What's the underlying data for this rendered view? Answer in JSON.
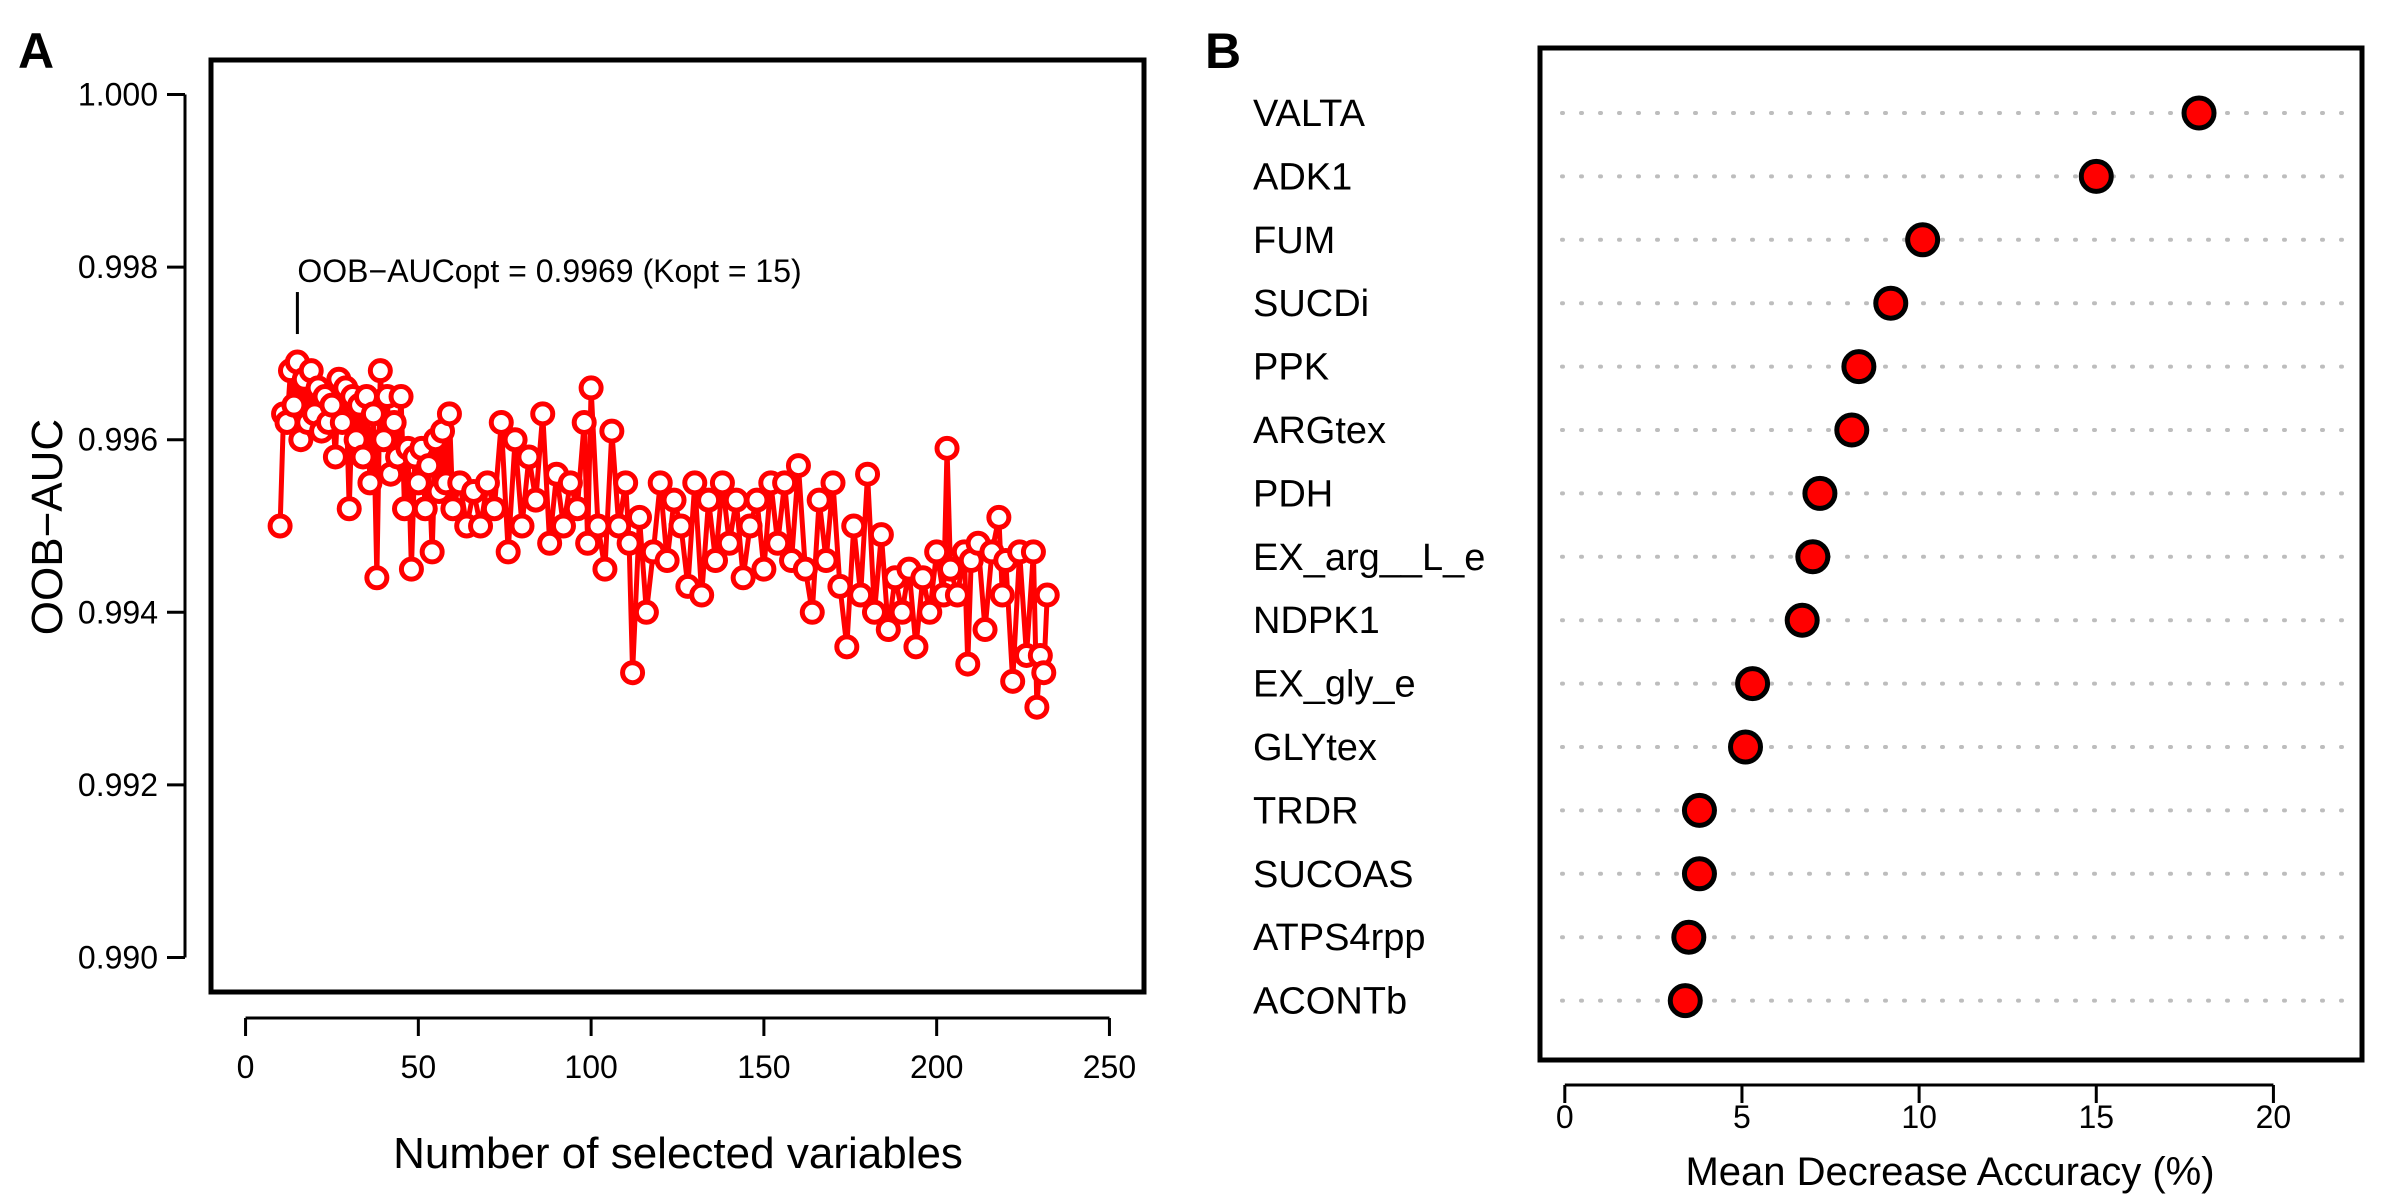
{
  "chart_data": [
    {
      "panel_label": "A",
      "type": "line",
      "xlabel": "Number of selected variables",
      "ylabel": "OOB−AUC",
      "xlim": [
        -10,
        260
      ],
      "ylim": [
        0.9896,
        1.0004
      ],
      "x_ticks": [
        0,
        50,
        100,
        150,
        200,
        250
      ],
      "x_tick_labels": [
        "0",
        "50",
        "100",
        "150",
        "200",
        "250"
      ],
      "y_ticks": [
        0.99,
        0.992,
        0.994,
        0.996,
        0.998,
        1.0
      ],
      "y_tick_labels": [
        "0.990",
        "0.992",
        "0.994",
        "0.996",
        "0.998",
        "1.000"
      ],
      "annotation": {
        "text": "OOB−AUCopt = 0.9969 (Kopt = 15)",
        "x": 15,
        "y": 0.9969
      },
      "series": [
        {
          "name": "OOB-AUC",
          "color": "#ff0000",
          "x": [
            10,
            11,
            12,
            13,
            14,
            15,
            16,
            17,
            18,
            19,
            20,
            21,
            22,
            23,
            24,
            25,
            26,
            27,
            28,
            29,
            30,
            31,
            32,
            33,
            34,
            35,
            36,
            37,
            38,
            39,
            40,
            41,
            42,
            43,
            44,
            45,
            46,
            47,
            48,
            49,
            50,
            51,
            52,
            53,
            54,
            55,
            56,
            57,
            58,
            59,
            60,
            62,
            64,
            66,
            68,
            70,
            72,
            74,
            76,
            78,
            80,
            82,
            84,
            86,
            88,
            90,
            92,
            94,
            96,
            98,
            99,
            100,
            102,
            104,
            106,
            108,
            110,
            111,
            112,
            114,
            116,
            118,
            120,
            122,
            124,
            126,
            128,
            130,
            132,
            134,
            136,
            138,
            140,
            142,
            144,
            146,
            148,
            150,
            152,
            154,
            156,
            158,
            160,
            162,
            164,
            166,
            168,
            170,
            172,
            174,
            176,
            178,
            180,
            182,
            184,
            186,
            188,
            190,
            192,
            194,
            196,
            198,
            200,
            202,
            203,
            204,
            206,
            208,
            209,
            210,
            212,
            214,
            216,
            218,
            219,
            220,
            222,
            224,
            226,
            228,
            229,
            230,
            231,
            232
          ],
          "y": [
            0.995,
            0.9963,
            0.9962,
            0.9968,
            0.9964,
            0.9969,
            0.996,
            0.9967,
            0.9962,
            0.9968,
            0.9963,
            0.9966,
            0.9961,
            0.9965,
            0.9962,
            0.9964,
            0.9958,
            0.9967,
            0.9962,
            0.9966,
            0.9952,
            0.9965,
            0.996,
            0.9964,
            0.9958,
            0.9965,
            0.9955,
            0.9963,
            0.9944,
            0.9968,
            0.996,
            0.9965,
            0.9956,
            0.9962,
            0.9958,
            0.9965,
            0.9952,
            0.9959,
            0.9945,
            0.9958,
            0.9955,
            0.9959,
            0.9952,
            0.9957,
            0.9947,
            0.996,
            0.9954,
            0.9961,
            0.9955,
            0.9963,
            0.9952,
            0.9955,
            0.995,
            0.9954,
            0.995,
            0.9955,
            0.9952,
            0.9962,
            0.9947,
            0.996,
            0.995,
            0.9958,
            0.9953,
            0.9963,
            0.9948,
            0.9956,
            0.995,
            0.9955,
            0.9952,
            0.9962,
            0.9948,
            0.9966,
            0.995,
            0.9945,
            0.9961,
            0.995,
            0.9955,
            0.9948,
            0.9933,
            0.9951,
            0.994,
            0.9947,
            0.9955,
            0.9946,
            0.9953,
            0.995,
            0.9943,
            0.9955,
            0.9942,
            0.9953,
            0.9946,
            0.9955,
            0.9948,
            0.9953,
            0.9944,
            0.995,
            0.9953,
            0.9945,
            0.9955,
            0.9948,
            0.9955,
            0.9946,
            0.9957,
            0.9945,
            0.994,
            0.9953,
            0.9946,
            0.9955,
            0.9943,
            0.9936,
            0.995,
            0.9942,
            0.9956,
            0.994,
            0.9949,
            0.9938,
            0.9944,
            0.994,
            0.9945,
            0.9936,
            0.9944,
            0.994,
            0.9947,
            0.9942,
            0.9959,
            0.9945,
            0.9942,
            0.9947,
            0.9934,
            0.9946,
            0.9948,
            0.9938,
            0.9947,
            0.9951,
            0.9942,
            0.9946,
            0.9932,
            0.9947,
            0.9935,
            0.9947,
            0.9929,
            0.9935,
            0.9933,
            0.9942
          ]
        }
      ]
    },
    {
      "panel_label": "B",
      "type": "scatter",
      "subtype": "dotchart",
      "xlabel": "Mean Decrease Accuracy (%)",
      "xlim": [
        -0.7,
        22.5
      ],
      "x_ticks": [
        0,
        5,
        10,
        15,
        20
      ],
      "x_tick_labels": [
        "0",
        "5",
        "10",
        "15",
        "20"
      ],
      "point_fill": "#ff0000",
      "point_edge": "#000000",
      "categories": [
        "VALTA",
        "ADK1",
        "FUM",
        "SUCDi",
        "PPK",
        "ARGtex",
        "PDH",
        "EX_arg__L_e",
        "NDPK1",
        "EX_gly_e",
        "GLYtex",
        "TRDR",
        "SUCOAS",
        "ATPS4rpp",
        "ACONTb"
      ],
      "values": [
        17.9,
        15.0,
        10.1,
        9.2,
        8.3,
        8.1,
        7.2,
        7.0,
        6.7,
        5.3,
        5.1,
        3.8,
        3.8,
        3.5,
        3.4
      ]
    }
  ]
}
